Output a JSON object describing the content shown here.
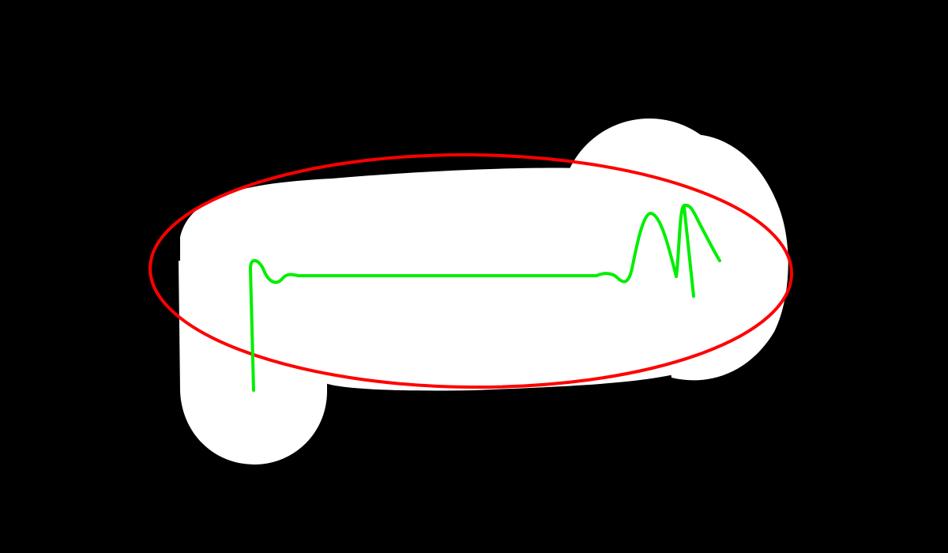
{
  "canvas": {
    "background_color": "#000000"
  },
  "mask_region": {
    "fill_color": "#ffffff"
  },
  "ellipse_outline": {
    "stroke_color": "#ff0000"
  },
  "trace_curve": {
    "stroke_color": "#00ee00"
  }
}
